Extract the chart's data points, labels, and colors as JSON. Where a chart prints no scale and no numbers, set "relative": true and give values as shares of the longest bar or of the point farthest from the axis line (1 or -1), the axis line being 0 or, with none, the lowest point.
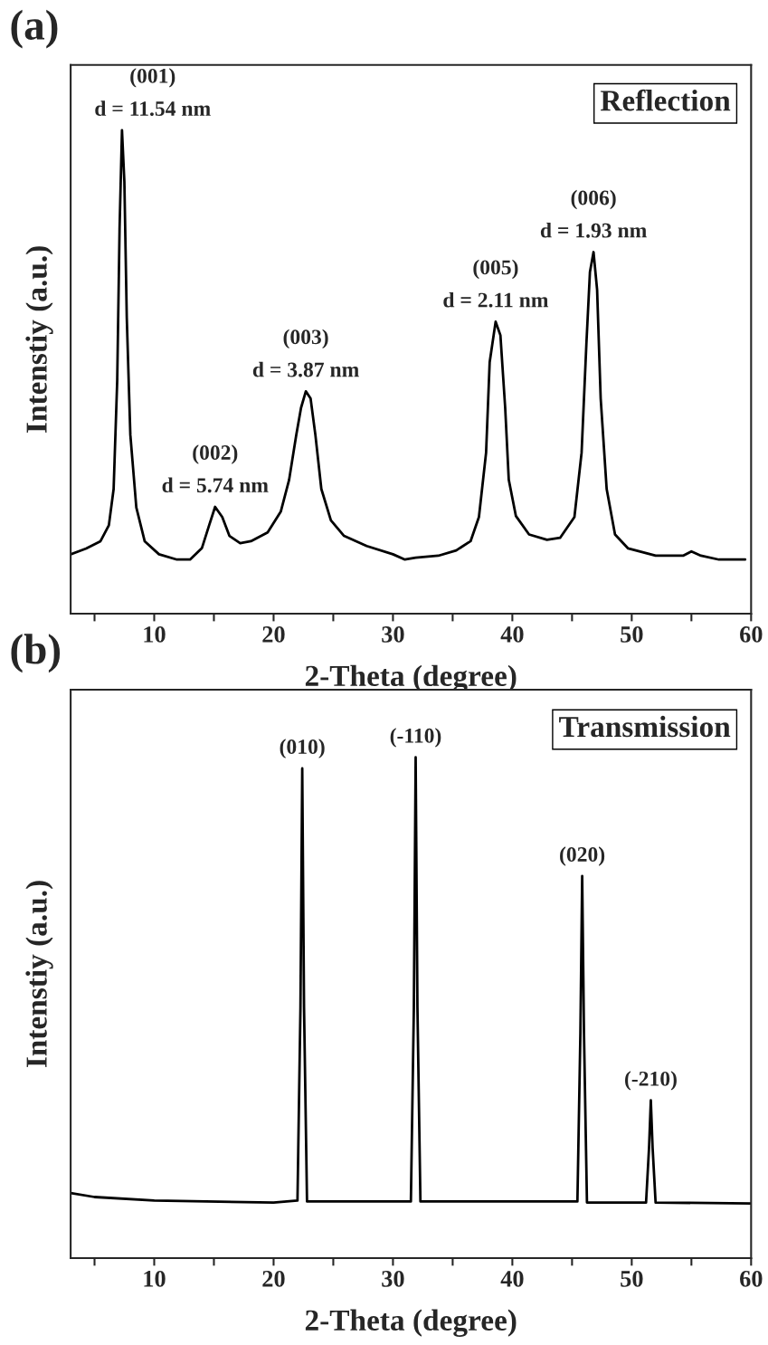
{
  "chart_data": [
    {
      "type": "line",
      "relative": true,
      "xlabel": "2-Theta (degree)",
      "ylabel": "Intenstiy (a.u.)",
      "xlim": [
        3,
        60
      ],
      "xticks": [
        {
          "value": 5,
          "label": null
        },
        10,
        {
          "value": 15,
          "label": null
        },
        20,
        {
          "value": 25,
          "label": null
        },
        30,
        {
          "value": 35,
          "label": null
        },
        40,
        {
          "value": 45,
          "label": null
        },
        50,
        {
          "value": 55,
          "label": null
        },
        60
      ],
      "grid": false,
      "marker": "none",
      "line_style": "solid",
      "series": [
        {
          "color": "#000000",
          "x": [
            3.0,
            4.3,
            5.5,
            6.2,
            6.6,
            6.9,
            7.1,
            7.3,
            7.5,
            7.7,
            8.0,
            8.5,
            9.2,
            10.4,
            11.9,
            13.0,
            14.0,
            14.6,
            15.1,
            15.7,
            16.3,
            17.2,
            18.1,
            19.5,
            20.6,
            21.3,
            21.9,
            22.3,
            22.7,
            23.1,
            23.5,
            24.0,
            24.8,
            25.9,
            27.8,
            30.0,
            31.0,
            31.9,
            33.8,
            35.3,
            36.5,
            37.2,
            37.8,
            38.1,
            38.6,
            39.0,
            39.4,
            39.7,
            40.3,
            41.4,
            42.9,
            44.0,
            45.2,
            45.8,
            46.2,
            46.5,
            46.8,
            47.1,
            47.4,
            47.9,
            48.6,
            49.7,
            52.0,
            54.3,
            55.0,
            55.8,
            57.3,
            59.5
          ],
          "values": [
            0.123,
            0.135,
            0.15,
            0.183,
            0.258,
            0.482,
            0.8,
            1.0,
            0.893,
            0.613,
            0.37,
            0.22,
            0.15,
            0.123,
            0.112,
            0.112,
            0.136,
            0.183,
            0.221,
            0.2,
            0.161,
            0.146,
            0.15,
            0.168,
            0.211,
            0.277,
            0.37,
            0.426,
            0.46,
            0.445,
            0.37,
            0.258,
            0.193,
            0.161,
            0.14,
            0.123,
            0.112,
            0.116,
            0.12,
            0.131,
            0.15,
            0.2,
            0.333,
            0.52,
            0.604,
            0.576,
            0.426,
            0.277,
            0.202,
            0.164,
            0.153,
            0.157,
            0.2,
            0.333,
            0.557,
            0.707,
            0.748,
            0.67,
            0.445,
            0.258,
            0.164,
            0.135,
            0.12,
            0.12,
            0.129,
            0.12,
            0.112,
            0.112
          ]
        }
      ],
      "annotations": [
        "(a)",
        "Reflection",
        {
          "text": "(001)\nd = 11.54 nm",
          "x": 7.3,
          "y": 1.0
        },
        {
          "text": "(002)\nd = 5.74 nm",
          "x": 15.1,
          "y": 0.221
        },
        {
          "text": "(003)\nd = 3.87 nm",
          "x": 22.7,
          "y": 0.46
        },
        {
          "text": "(005)\nd = 2.11 nm",
          "x": 38.6,
          "y": 0.604
        },
        {
          "text": "(006)\nd = 1.93 nm",
          "x": 46.8,
          "y": 0.748
        }
      ]
    },
    {
      "type": "line",
      "relative": true,
      "xlabel": "2-Theta (degree)",
      "ylabel": "Intenstiy (a.u.)",
      "xlim": [
        3,
        60
      ],
      "xticks": [
        {
          "value": 5,
          "label": null
        },
        10,
        {
          "value": 15,
          "label": null
        },
        20,
        {
          "value": 25,
          "label": null
        },
        30,
        {
          "value": 35,
          "label": null
        },
        40,
        {
          "value": 45,
          "label": null
        },
        50,
        {
          "value": 55,
          "label": null
        },
        60
      ],
      "grid": false,
      "marker": "none",
      "line_style": "solid",
      "series": [
        {
          "color": "#000000",
          "x": [
            3.0,
            5.0,
            10.0,
            20.0,
            22.0,
            22.25,
            22.4,
            22.55,
            22.8,
            31.5,
            31.75,
            31.9,
            32.05,
            32.3,
            45.45,
            45.7,
            45.85,
            46.0,
            46.25,
            51.2,
            51.45,
            51.6,
            51.75,
            52.0,
            60.0
          ],
          "values": [
            0.13,
            0.122,
            0.115,
            0.111,
            0.115,
            0.5,
            0.978,
            0.5,
            0.113,
            0.113,
            0.5,
            1.0,
            0.5,
            0.113,
            0.113,
            0.45,
            0.763,
            0.45,
            0.111,
            0.111,
            0.22,
            0.315,
            0.22,
            0.111,
            0.109
          ]
        }
      ],
      "annotations": [
        "(b)",
        "Transmission",
        {
          "text": "(010)",
          "x": 22.4,
          "y": 0.978
        },
        {
          "text": "(-110)",
          "x": 31.9,
          "y": 1.0
        },
        {
          "text": "(020)",
          "x": 45.85,
          "y": 0.763
        },
        {
          "text": "(-210)",
          "x": 51.6,
          "y": 0.315
        }
      ]
    }
  ]
}
